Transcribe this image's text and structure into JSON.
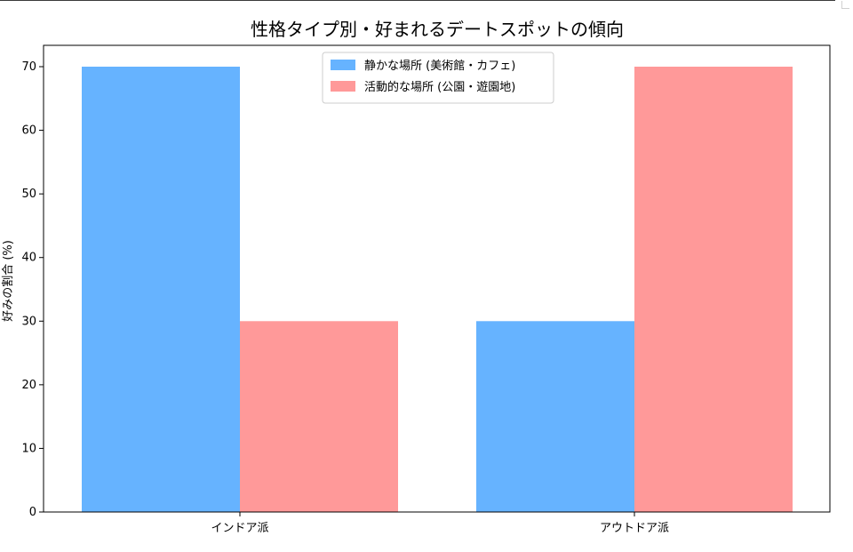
{
  "chart_data": {
    "type": "bar",
    "title": "性格タイプ別・好まれるデートスポットの傾向",
    "xlabel": "",
    "ylabel": "好みの割合 (%)",
    "categories": [
      "インドア派",
      "アウトドア派"
    ],
    "series": [
      {
        "name": "静かな場所 (美術館・カフェ)",
        "values": [
          70,
          30
        ],
        "color": "#66b3ff"
      },
      {
        "name": "活動的な場所 (公園・遊園地)",
        "values": [
          30,
          70
        ],
        "color": "#ff9999"
      }
    ],
    "ylim": [
      0,
      70
    ],
    "yticks": [
      0,
      10,
      20,
      30,
      40,
      50,
      60,
      70
    ],
    "grid": false,
    "legend_position": "top-center"
  }
}
